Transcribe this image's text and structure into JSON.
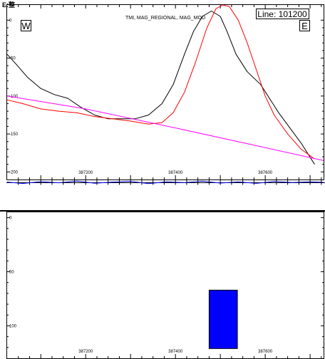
{
  "header": {
    "corner_mark": "E:整"
  },
  "chart_data": [
    {
      "type": "line",
      "panel": "profile",
      "title": "TMI, MAG_REGIONAL, MAG_MOD",
      "line_label": "Line: 101200",
      "west_label": "W",
      "east_label": "E",
      "xlim": [
        387025,
        387730
      ],
      "ylim": [
        -210,
        20
      ],
      "x_ticks": [
        387200,
        387400,
        387600
      ],
      "x_tick_labels": [
        "387200",
        "387400",
        "387600"
      ],
      "y_ticks": [
        0,
        -50,
        -100,
        -150,
        -200
      ],
      "y_tick_labels": [
        "0",
        "-50",
        "-100",
        "-150",
        "-200"
      ],
      "grid": false,
      "series": [
        {
          "color": "#000000",
          "x": [
            387025,
            387045,
            387070,
            387100,
            387130,
            387160,
            387190,
            387220,
            387250,
            387280,
            387310,
            387340,
            387370,
            387395,
            387420,
            387440,
            387460,
            387480,
            387500,
            387515,
            387535,
            387560,
            387590,
            387630,
            387680,
            387710
          ],
          "y": [
            -45,
            -58,
            -75,
            -90,
            -98,
            -103,
            -115,
            -125,
            -130,
            -130,
            -130,
            -125,
            -110,
            -85,
            -45,
            -15,
            5,
            12,
            5,
            -15,
            -45,
            -68,
            -85,
            -122,
            -162,
            -190
          ]
        },
        {
          "color": "#ff0000",
          "x": [
            387025,
            387060,
            387100,
            387140,
            387180,
            387220,
            387260,
            387300,
            387340,
            387370,
            387395,
            387420,
            387445,
            387470,
            387490,
            387505,
            387520,
            387540,
            387560,
            387580,
            387600,
            387620,
            387650,
            387680,
            387710
          ],
          "y": [
            -105,
            -110,
            -117,
            -120,
            -122,
            -127,
            -130,
            -133,
            -137,
            -135,
            -122,
            -95,
            -55,
            -10,
            15,
            20,
            18,
            0,
            -30,
            -65,
            -100,
            -125,
            -150,
            -170,
            -183
          ]
        },
        {
          "color": "#ff00ff",
          "x": [
            387025,
            387200,
            387400,
            387600,
            387730
          ],
          "y": [
            -100,
            -117,
            -142,
            -168,
            -185
          ]
        }
      ]
    },
    {
      "type": "line",
      "panel": "residual",
      "series": [
        {
          "color": "#0000ff",
          "x": [
            387025,
            387060,
            387100,
            387140,
            387180,
            387220,
            387260,
            387300,
            387340,
            387380,
            387420,
            387460,
            387500,
            387540,
            387580,
            387620,
            387660,
            387700,
            387730
          ],
          "y": [
            0.2,
            -0.8,
            0.5,
            -0.3,
            0.9,
            -0.6,
            0.2,
            0.7,
            -0.9,
            0.4,
            -0.2,
            0.8,
            -0.5,
            0.3,
            -0.7,
            0.6,
            -0.1,
            0.4,
            0.0
          ]
        }
      ]
    },
    {
      "type": "bar",
      "panel": "depth",
      "xlim": [
        387025,
        387730
      ],
      "ylim": [
        -5,
        130
      ],
      "x_ticks": [
        387200,
        387400,
        387600
      ],
      "x_tick_labels": [
        "387200",
        "387400",
        "387600"
      ],
      "y_ticks": [
        0,
        50,
        100
      ],
      "y_tick_labels": [
        "0",
        "50",
        "100"
      ],
      "grid": false,
      "bars": [
        {
          "x0": 387475,
          "x1": 387538,
          "top": 67,
          "bottom": 121,
          "color": "#0000ff"
        }
      ]
    }
  ]
}
